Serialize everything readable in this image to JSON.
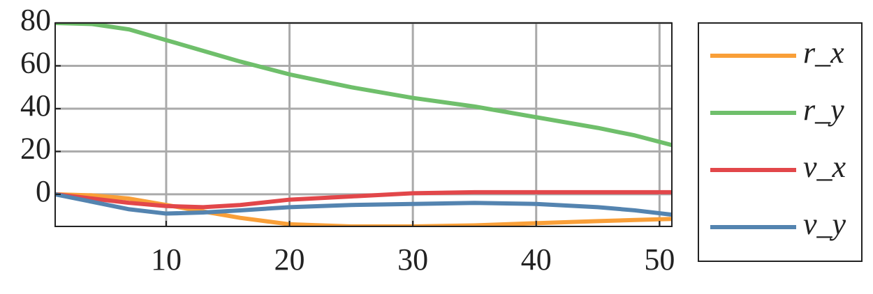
{
  "chart_data": {
    "type": "line",
    "x": [
      1,
      4,
      7,
      10,
      13,
      16,
      20,
      25,
      30,
      35,
      40,
      45,
      48,
      51
    ],
    "series": [
      {
        "name": "r_x",
        "color": "#f99f38",
        "values": [
          0,
          -0.5,
          -2,
          -5,
          -8,
          -11,
          -14,
          -15,
          -15,
          -14.5,
          -13.5,
          -12.5,
          -12,
          -11.5
        ]
      },
      {
        "name": "r_y",
        "color": "#6fbf6b",
        "values": [
          80,
          79.5,
          77,
          72,
          67,
          62,
          56,
          50,
          45,
          41,
          36,
          31,
          27.5,
          23
        ]
      },
      {
        "name": "v_x",
        "color": "#e2474a",
        "values": [
          0,
          -2,
          -4,
          -5.5,
          -6,
          -5,
          -2.5,
          -1,
          0.5,
          1,
          1,
          1,
          1,
          1
        ]
      },
      {
        "name": "v_y",
        "color": "#5484b0",
        "values": [
          0,
          -3.5,
          -7,
          -9,
          -8.5,
          -7.5,
          -6,
          -5,
          -4.5,
          -4,
          -4.5,
          -6,
          -7.5,
          -9.5
        ]
      }
    ],
    "xlim": [
      1,
      51
    ],
    "ylim": [
      -15,
      80
    ],
    "xticks": [
      10,
      20,
      30,
      40,
      50
    ],
    "yticks": [
      0,
      20,
      40,
      60,
      80
    ],
    "grid": true,
    "legend": "right"
  }
}
